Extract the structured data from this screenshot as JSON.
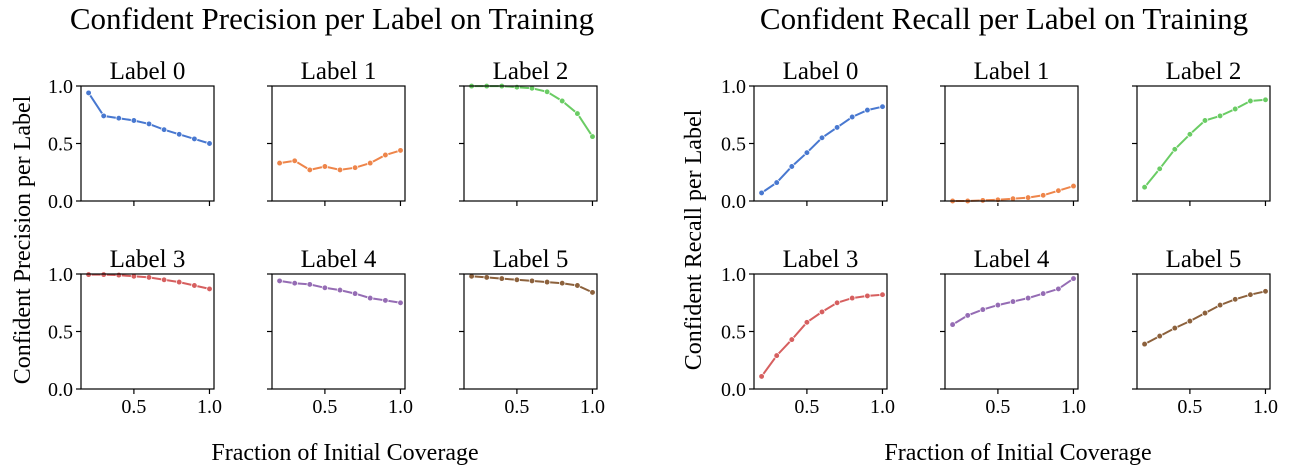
{
  "chart_data": [
    {
      "type": "line",
      "title": "Confident Precision per Label on Training",
      "xlabel": "Fraction of Initial Coverage",
      "ylabel": "Confident Precision per Label",
      "xlim": [
        0.15,
        1.03
      ],
      "ylim": [
        0.0,
        1.0
      ],
      "xticks": [
        0.5,
        1.0
      ],
      "xtick_labels": [
        "0.5",
        "1.0"
      ],
      "yticks": [
        0.0,
        0.5,
        1.0
      ],
      "ytick_labels": [
        "0.0",
        "0.5",
        "1.0"
      ],
      "grid": false,
      "x": [
        0.2,
        0.3,
        0.4,
        0.5,
        0.6,
        0.7,
        0.8,
        0.9,
        1.0
      ],
      "series": [
        {
          "name": "Label 0",
          "color": "#4878d0",
          "values": [
            0.94,
            0.74,
            0.72,
            0.7,
            0.67,
            0.62,
            0.58,
            0.54,
            0.5
          ]
        },
        {
          "name": "Label 1",
          "color": "#ee854a",
          "values": [
            0.33,
            0.35,
            0.27,
            0.3,
            0.27,
            0.29,
            0.33,
            0.4,
            0.44
          ]
        },
        {
          "name": "Label 2",
          "color": "#6acc64",
          "values": [
            0.999,
            0.999,
            0.999,
            0.99,
            0.98,
            0.95,
            0.87,
            0.76,
            0.56
          ]
        },
        {
          "name": "Label 3",
          "color": "#d65f5f",
          "values": [
            0.995,
            0.995,
            0.99,
            0.98,
            0.97,
            0.95,
            0.93,
            0.9,
            0.87
          ]
        },
        {
          "name": "Label 4",
          "color": "#956cb4",
          "values": [
            0.94,
            0.92,
            0.91,
            0.88,
            0.86,
            0.83,
            0.79,
            0.77,
            0.75
          ]
        },
        {
          "name": "Label 5",
          "color": "#8c613c",
          "values": [
            0.98,
            0.97,
            0.96,
            0.95,
            0.94,
            0.93,
            0.92,
            0.9,
            0.84
          ]
        }
      ]
    },
    {
      "type": "line",
      "title": "Confident Recall per Label on Training",
      "xlabel": "Fraction of Initial Coverage",
      "ylabel": "Confident Recall per Label",
      "xlim": [
        0.15,
        1.03
      ],
      "ylim": [
        0.0,
        1.0
      ],
      "xticks": [
        0.5,
        1.0
      ],
      "xtick_labels": [
        "0.5",
        "1.0"
      ],
      "yticks": [
        0.0,
        0.5,
        1.0
      ],
      "ytick_labels": [
        "0.0",
        "0.5",
        "1.0"
      ],
      "grid": false,
      "x": [
        0.2,
        0.3,
        0.4,
        0.5,
        0.6,
        0.7,
        0.8,
        0.9,
        1.0
      ],
      "series": [
        {
          "name": "Label 0",
          "color": "#4878d0",
          "values": [
            0.07,
            0.16,
            0.3,
            0.42,
            0.55,
            0.64,
            0.73,
            0.79,
            0.82
          ]
        },
        {
          "name": "Label 1",
          "color": "#ee854a",
          "values": [
            0.0,
            0.0,
            0.005,
            0.01,
            0.02,
            0.03,
            0.05,
            0.09,
            0.13
          ]
        },
        {
          "name": "Label 2",
          "color": "#6acc64",
          "values": [
            0.12,
            0.28,
            0.45,
            0.58,
            0.7,
            0.74,
            0.8,
            0.87,
            0.88
          ]
        },
        {
          "name": "Label 3",
          "color": "#d65f5f",
          "values": [
            0.11,
            0.29,
            0.43,
            0.58,
            0.67,
            0.75,
            0.79,
            0.81,
            0.82
          ]
        },
        {
          "name": "Label 4",
          "color": "#956cb4",
          "values": [
            0.56,
            0.64,
            0.69,
            0.73,
            0.76,
            0.79,
            0.83,
            0.87,
            0.96
          ]
        },
        {
          "name": "Label 5",
          "color": "#8c613c",
          "values": [
            0.39,
            0.46,
            0.53,
            0.59,
            0.66,
            0.73,
            0.78,
            0.82,
            0.85
          ]
        }
      ]
    }
  ]
}
